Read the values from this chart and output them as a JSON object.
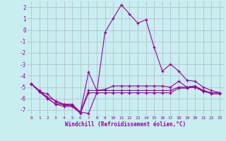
{
  "xlabel": "Windchill (Refroidissement éolien,°C)",
  "background_color": "#c8eef0",
  "grid_color": "#b0b8cc",
  "line_color": "#990099",
  "x_ticks": [
    0,
    1,
    2,
    3,
    4,
    5,
    6,
    7,
    8,
    9,
    10,
    11,
    12,
    13,
    14,
    15,
    16,
    17,
    18,
    19,
    20,
    21,
    22,
    23
  ],
  "ylim": [
    -7.5,
    2.5
  ],
  "yticks": [
    2,
    1,
    0,
    -1,
    -2,
    -3,
    -4,
    -5,
    -6,
    -7
  ],
  "series": [
    [
      -4.7,
      -5.3,
      -5.9,
      -6.2,
      -6.5,
      -6.5,
      -7.2,
      -3.7,
      -5.3,
      -5.2,
      -4.9,
      -4.9,
      -4.9,
      -4.9,
      -4.9,
      -4.9,
      -4.9,
      -5.0,
      -4.5,
      -5.0,
      -5.0,
      -5.3,
      -5.6,
      -5.6
    ],
    [
      -4.7,
      -5.4,
      -6.0,
      -6.5,
      -6.5,
      -6.6,
      -7.2,
      -5.3,
      -5.3,
      -5.3,
      -5.3,
      -5.3,
      -5.3,
      -5.3,
      -5.3,
      -5.3,
      -5.3,
      -5.3,
      -5.0,
      -5.0,
      -4.9,
      -5.3,
      -5.5,
      -5.5
    ],
    [
      -4.7,
      -5.4,
      -6.0,
      -6.5,
      -6.7,
      -6.7,
      -7.3,
      -5.5,
      -5.5,
      -5.5,
      -5.5,
      -5.5,
      -5.5,
      -5.5,
      -5.5,
      -5.5,
      -5.5,
      -5.5,
      -5.1,
      -5.1,
      -5.0,
      -5.4,
      -5.5,
      -5.5
    ],
    [
      -4.7,
      -5.4,
      -5.6,
      -6.3,
      -6.6,
      -6.6,
      -7.2,
      -7.3,
      -5.5,
      -0.2,
      1.0,
      2.2,
      1.4,
      0.6,
      0.9,
      -1.5,
      -3.6,
      -3.0,
      -3.6,
      -4.4,
      -4.5,
      -5.0,
      -5.3,
      -5.5
    ]
  ]
}
